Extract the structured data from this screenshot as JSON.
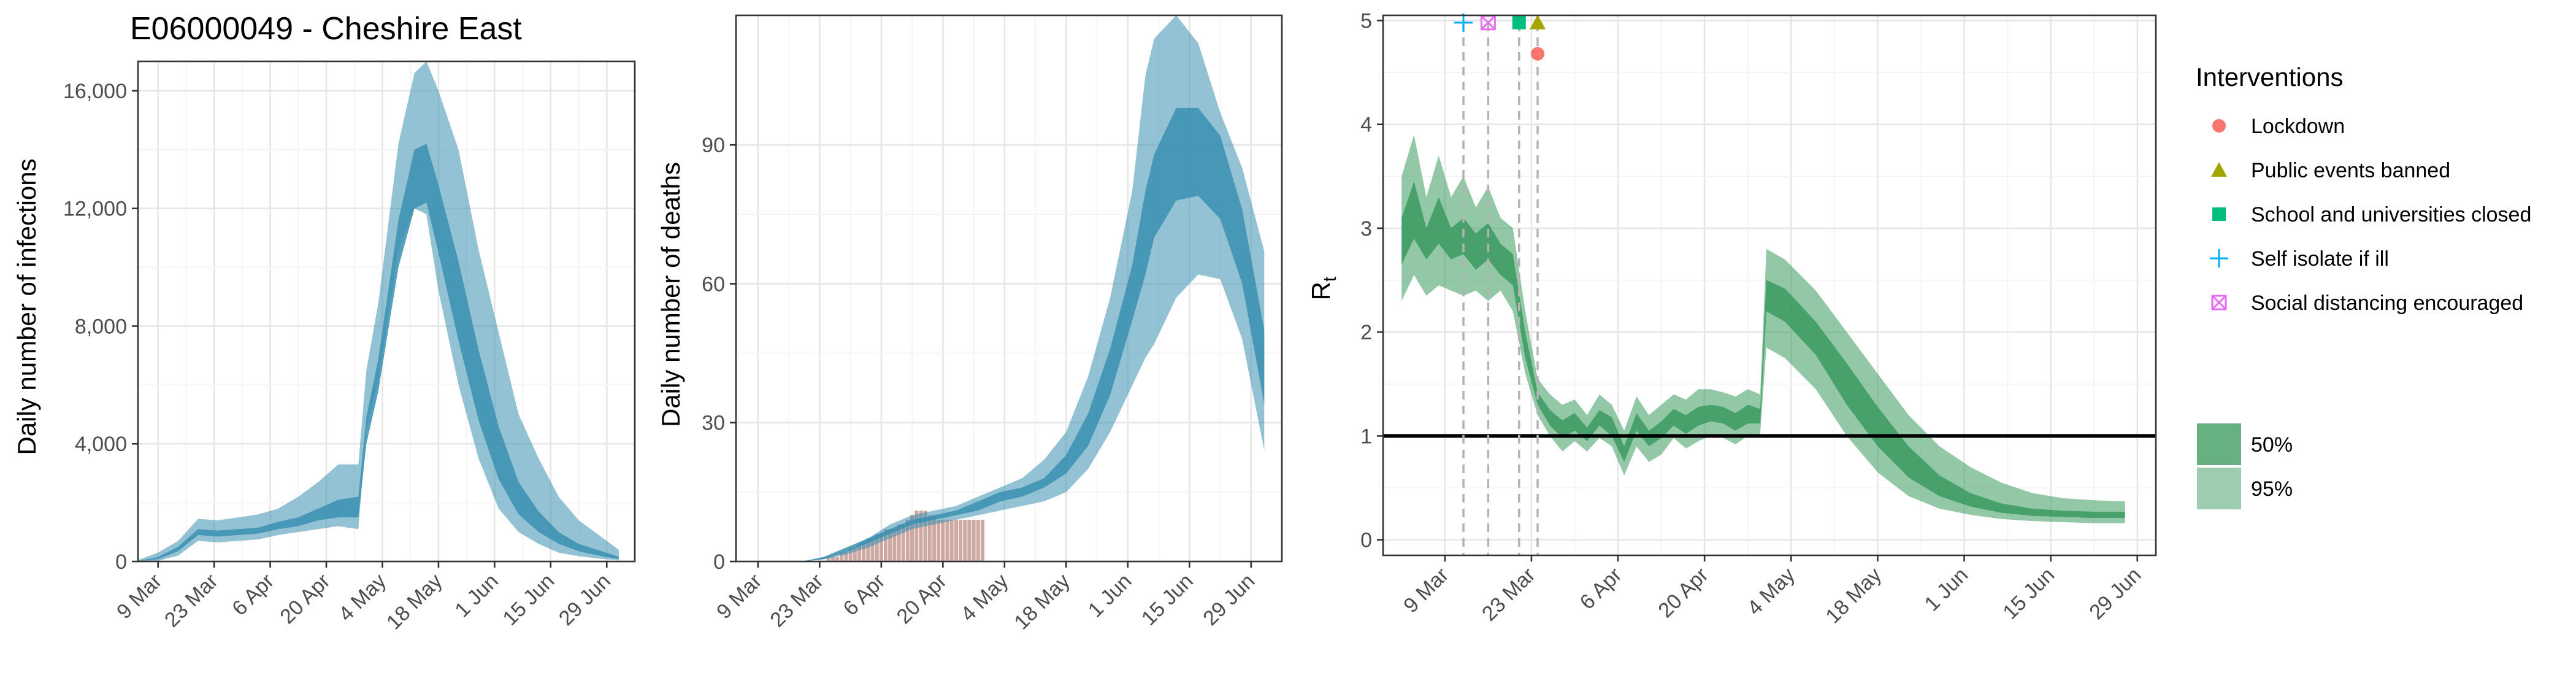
{
  "title": "E06000049 - Cheshire East",
  "colors": {
    "blue": "#3a8fb0",
    "blue_dark": "#2b7c9d",
    "green": "#3b9a5f",
    "bars": "#c59a92",
    "lockdown": "#f8766d",
    "events": "#a3a500",
    "school": "#00bf7d",
    "isolate": "#00b0f6",
    "distancing": "#e76bf3"
  },
  "x_ticks": [
    "9 Mar",
    "23 Mar",
    "6 Apr",
    "20 Apr",
    "4 May",
    "18 May",
    "1 Jun",
    "15 Jun",
    "29 Jun"
  ],
  "legend": {
    "interventions_title": "Interventions",
    "interventions": [
      {
        "label": "Lockdown",
        "marker": "circle",
        "color": "#f8766d"
      },
      {
        "label": "Public events banned",
        "marker": "triangle",
        "color": "#a3a500"
      },
      {
        "label": "School and universities closed",
        "marker": "square",
        "color": "#00bf7d"
      },
      {
        "label": "Self isolate if ill",
        "marker": "plus",
        "color": "#00b0f6"
      },
      {
        "label": "Social distancing encouraged",
        "marker": "boxed-x",
        "color": "#e76bf3"
      }
    ],
    "bands": [
      {
        "label": "50%",
        "opacity": 0.78
      },
      {
        "label": "95%",
        "opacity": 0.5
      }
    ]
  },
  "chart_data": [
    {
      "type": "area",
      "panel": "infections",
      "ylabel": "Daily number of infections",
      "ylim": [
        0,
        17000
      ],
      "yticks": [
        0,
        4000,
        8000,
        12000,
        16000
      ],
      "ytick_labels": [
        "0",
        "4,000",
        "8,000",
        "12,000",
        "16,000"
      ],
      "xlim_days": [
        -5,
        119
      ],
      "x_day0": "2020-03-09",
      "series": [
        {
          "name": "95%",
          "band": "outer",
          "x": [
            -5,
            0,
            5,
            10,
            15,
            20,
            25,
            30,
            35,
            40,
            45,
            50,
            52,
            55,
            60,
            64,
            67,
            70,
            75,
            80,
            85,
            90,
            95,
            100,
            105,
            110,
            115
          ],
          "lower": [
            0,
            20,
            200,
            700,
            650,
            700,
            750,
            900,
            1000,
            1100,
            1200,
            1100,
            4500,
            6200,
            10600,
            12000,
            11800,
            9200,
            6000,
            3500,
            1800,
            1000,
            600,
            300,
            180,
            100,
            40
          ],
          "upper": [
            50,
            300,
            700,
            1450,
            1400,
            1500,
            1600,
            1800,
            2200,
            2700,
            3300,
            3300,
            6500,
            8800,
            14200,
            16600,
            17000,
            16000,
            14000,
            10600,
            7800,
            5000,
            3500,
            2200,
            1400,
            900,
            400
          ]
        },
        {
          "name": "50%",
          "band": "inner",
          "x": [
            -5,
            0,
            5,
            10,
            15,
            20,
            25,
            30,
            35,
            40,
            45,
            50,
            52,
            55,
            60,
            64,
            67,
            70,
            75,
            80,
            85,
            90,
            95,
            100,
            105,
            110,
            115
          ],
          "lower": [
            10,
            80,
            350,
            900,
            850,
            900,
            950,
            1100,
            1200,
            1400,
            1500,
            1500,
            4000,
            5800,
            10000,
            12000,
            12200,
            10500,
            7500,
            4800,
            2800,
            1600,
            1000,
            600,
            350,
            200,
            80
          ],
          "upper": [
            20,
            150,
            500,
            1100,
            1050,
            1100,
            1150,
            1350,
            1500,
            1800,
            2100,
            2200,
            4900,
            6900,
            11600,
            14000,
            14200,
            12800,
            10200,
            7200,
            4600,
            2700,
            1700,
            1000,
            600,
            380,
            160
          ]
        }
      ]
    },
    {
      "type": "area",
      "panel": "deaths",
      "ylabel": "Daily number of deaths",
      "ylim": [
        0,
        118
      ],
      "yticks": [
        0,
        30,
        60,
        90
      ],
      "ytick_labels": [
        "0",
        "30",
        "60",
        "90"
      ],
      "xlim_days": [
        -5,
        119
      ],
      "x_day0": "2020-03-09",
      "bars": {
        "x_start": 14,
        "x_end": 51,
        "values": [
          0,
          0,
          1,
          1,
          1,
          2,
          2,
          3,
          3,
          4,
          4,
          5,
          5,
          6,
          6,
          7,
          7,
          7,
          8,
          8,
          9,
          10,
          11,
          11,
          11,
          10,
          10,
          9,
          9,
          9,
          9,
          9,
          9,
          9,
          9,
          9,
          9,
          9
        ]
      },
      "series": [
        {
          "name": "95%",
          "band": "outer",
          "x": [
            0,
            10,
            15,
            20,
            25,
            30,
            35,
            40,
            45,
            50,
            55,
            60,
            65,
            70,
            75,
            80,
            85,
            88,
            90,
            95,
            100,
            105,
            110,
            115
          ],
          "lower": [
            0,
            0,
            0.5,
            1.5,
            3,
            5,
            7,
            8,
            9,
            10,
            11,
            12,
            13,
            15,
            20,
            28,
            38,
            44,
            47,
            57,
            62,
            61,
            48,
            24
          ],
          "upper": [
            0,
            0,
            1,
            2,
            5,
            8,
            10,
            11,
            12,
            14,
            16,
            18,
            22,
            28,
            40,
            57,
            80,
            105,
            113,
            118,
            112,
            97,
            85,
            67
          ]
        },
        {
          "name": "50%",
          "band": "inner",
          "x": [
            0,
            10,
            15,
            20,
            25,
            30,
            35,
            40,
            45,
            50,
            55,
            60,
            65,
            70,
            75,
            80,
            85,
            88,
            90,
            95,
            100,
            105,
            110,
            115
          ],
          "lower": [
            0,
            0,
            0.5,
            2,
            4,
            6,
            8,
            9,
            10,
            11,
            13,
            14,
            16,
            19,
            25,
            36,
            52,
            62,
            70,
            78,
            79,
            74,
            60,
            34
          ],
          "upper": [
            0,
            0,
            1,
            3,
            5,
            7,
            9,
            10,
            11,
            13,
            15,
            16,
            18,
            23,
            32,
            46,
            64,
            80,
            88,
            98,
            98,
            92,
            76,
            50
          ]
        }
      ]
    },
    {
      "type": "area",
      "panel": "rt",
      "ylabel": "R",
      "ylabel_subscript": "t",
      "ylim": [
        -0.15,
        5.05
      ],
      "yticks": [
        0,
        1,
        2,
        3,
        4,
        5
      ],
      "ytick_labels": [
        "0",
        "1",
        "2",
        "3",
        "4",
        "5"
      ],
      "xlim_days": [
        -10,
        115
      ],
      "x_day0": "2020-03-09",
      "reference_line": 1,
      "interventions": [
        {
          "label": "Self isolate if ill",
          "day": 3,
          "y": 4.98
        },
        {
          "label": "Social distancing encouraged",
          "day": 7,
          "y": 4.98
        },
        {
          "label": "School and universities closed",
          "day": 12,
          "y": 4.98
        },
        {
          "label": "Public events banned",
          "day": 15,
          "y": 4.98
        },
        {
          "label": "Lockdown",
          "day": 15,
          "y": 4.68
        }
      ],
      "series": [
        {
          "name": "95%",
          "band": "outer",
          "x": [
            -7,
            -5,
            -3,
            -1,
            1,
            3,
            5,
            7,
            9,
            11,
            13,
            15,
            17,
            19,
            21,
            23,
            25,
            27,
            29,
            31,
            33,
            35,
            37,
            39,
            41,
            43,
            45,
            47,
            49,
            51,
            52,
            55,
            60,
            65,
            70,
            75,
            80,
            85,
            90,
            95,
            100,
            105,
            110
          ],
          "lower": [
            2.3,
            2.55,
            2.35,
            2.45,
            2.4,
            2.35,
            2.4,
            2.3,
            2.4,
            2.2,
            1.6,
            1.2,
            1.0,
            0.85,
            0.95,
            0.85,
            0.98,
            0.9,
            0.62,
            0.9,
            0.75,
            0.82,
            0.98,
            0.88,
            0.95,
            1.0,
            0.98,
            0.92,
            1.0,
            1.02,
            1.85,
            1.75,
            1.45,
            1.0,
            0.65,
            0.42,
            0.3,
            0.24,
            0.2,
            0.18,
            0.17,
            0.16,
            0.16
          ],
          "upper": [
            3.5,
            3.9,
            3.3,
            3.7,
            3.3,
            3.5,
            3.2,
            3.4,
            3.1,
            3.0,
            2.2,
            1.55,
            1.4,
            1.3,
            1.35,
            1.2,
            1.4,
            1.3,
            1.05,
            1.38,
            1.2,
            1.3,
            1.4,
            1.35,
            1.45,
            1.45,
            1.42,
            1.38,
            1.45,
            1.4,
            2.8,
            2.7,
            2.4,
            2.0,
            1.6,
            1.2,
            0.9,
            0.7,
            0.55,
            0.45,
            0.4,
            0.38,
            0.37
          ]
        },
        {
          "name": "50%",
          "band": "inner",
          "x": [
            -7,
            -5,
            -3,
            -1,
            1,
            3,
            5,
            7,
            9,
            11,
            13,
            15,
            17,
            19,
            21,
            23,
            25,
            27,
            29,
            31,
            33,
            35,
            37,
            39,
            41,
            43,
            45,
            47,
            49,
            51,
            52,
            55,
            60,
            65,
            70,
            75,
            80,
            85,
            90,
            95,
            100,
            105,
            110
          ],
          "lower": [
            2.65,
            2.9,
            2.7,
            2.85,
            2.7,
            2.75,
            2.6,
            2.7,
            2.55,
            2.45,
            1.75,
            1.3,
            1.1,
            0.98,
            1.05,
            0.95,
            1.1,
            1.0,
            0.75,
            1.05,
            0.9,
            0.98,
            1.1,
            1.02,
            1.1,
            1.14,
            1.12,
            1.05,
            1.12,
            1.12,
            2.2,
            2.1,
            1.78,
            1.3,
            0.9,
            0.6,
            0.42,
            0.32,
            0.26,
            0.23,
            0.22,
            0.21,
            0.21
          ]
        },
        {
          "name": "50%_upper",
          "x": [
            -7,
            -5,
            -3,
            -1,
            1,
            3,
            5,
            7,
            9,
            11,
            13,
            15,
            17,
            19,
            21,
            23,
            25,
            27,
            29,
            31,
            33,
            35,
            37,
            39,
            41,
            43,
            45,
            47,
            49,
            51,
            52,
            55,
            60,
            65,
            70,
            75,
            80,
            85,
            90,
            95,
            100,
            105,
            110
          ],
          "upper": [
            3.1,
            3.45,
            3.0,
            3.3,
            3.0,
            3.1,
            2.95,
            3.05,
            2.85,
            2.75,
            2.0,
            1.42,
            1.25,
            1.15,
            1.22,
            1.08,
            1.25,
            1.18,
            0.9,
            1.22,
            1.05,
            1.14,
            1.26,
            1.2,
            1.28,
            1.3,
            1.28,
            1.22,
            1.3,
            1.26,
            2.5,
            2.42,
            2.1,
            1.7,
            1.28,
            0.9,
            0.62,
            0.45,
            0.35,
            0.3,
            0.28,
            0.27,
            0.27
          ]
        }
      ]
    }
  ]
}
